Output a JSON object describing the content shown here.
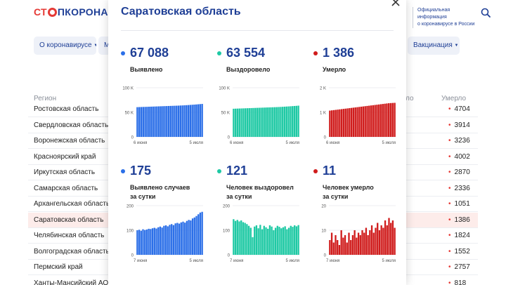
{
  "header": {
    "logo_part1": "СТ",
    "logo_part2": "ПКОРОНАВИ",
    "official_line1": "Официальная информация",
    "official_line2": "о коронавирусе в России"
  },
  "nav": {
    "about": "О коронавирусе",
    "m": "М",
    "vaccination": "Вакцинация"
  },
  "table": {
    "col_region": "Регион",
    "col_partial": "ло",
    "col_died": "Умерло",
    "rows": [
      {
        "name": "Ростовская область",
        "value": "4704"
      },
      {
        "name": "Свердловская область",
        "value": "3914"
      },
      {
        "name": "Воронежская область",
        "value": "3236"
      },
      {
        "name": "Красноярский край",
        "value": "4002"
      },
      {
        "name": "Иркутская область",
        "value": "2870"
      },
      {
        "name": "Самарская область",
        "value": "2336"
      },
      {
        "name": "Архангельская область",
        "value": "1051"
      },
      {
        "name": "Саратовская область",
        "value": "1386"
      },
      {
        "name": "Челябинская область",
        "value": "1824"
      },
      {
        "name": "Волгоградская область",
        "value": "1552"
      },
      {
        "name": "Пермский край",
        "value": "2757"
      },
      {
        "name": "Ханты-Мансийский АО",
        "value": "818"
      }
    ]
  },
  "modal": {
    "title": "Саратовская область",
    "stats": [
      {
        "value": "67 088",
        "label": "Выявлено",
        "color": "#2b6fe8"
      },
      {
        "value": "63 554",
        "label": "Выздоровело",
        "color": "#1ec9a4"
      },
      {
        "value": "1 386",
        "label": "Умерло",
        "color": "#d01c1c"
      },
      {
        "value": "175",
        "label1": "Выявлено случаев",
        "label2": "за сутки",
        "color": "#2b6fe8"
      },
      {
        "value": "121",
        "label1": "Человек выздоровел",
        "label2": "за сутки",
        "color": "#1ec9a4"
      },
      {
        "value": "11",
        "label1": "Человек умерло",
        "label2": "за сутки",
        "color": "#d01c1c"
      }
    ]
  },
  "chart_data": [
    {
      "type": "bar",
      "ticks_y": [
        "100 K",
        "50 K",
        "0"
      ],
      "ylim": [
        0,
        100000
      ],
      "x_start": "6 июня",
      "x_end": "5 июля",
      "color": "#2b6fe8",
      "values": [
        60500,
        60650,
        60800,
        60950,
        61100,
        61250,
        61400,
        61550,
        61700,
        61850,
        62000,
        62150,
        62300,
        62450,
        62600,
        62750,
        62900,
        63050,
        63200,
        63350,
        63500,
        63650,
        63850,
        64050,
        64300,
        64550,
        64800,
        65100,
        65400,
        65700,
        66000,
        66350,
        66700,
        67088
      ]
    },
    {
      "type": "bar",
      "ticks_y": [
        "100 K",
        "50 K",
        "0"
      ],
      "ylim": [
        0,
        100000
      ],
      "x_start": "6 июня",
      "x_end": "5 июля",
      "color": "#1ec9a4",
      "values": [
        57300,
        57450,
        57600,
        57750,
        57900,
        58050,
        58200,
        58350,
        58500,
        58650,
        58800,
        58950,
        59100,
        59250,
        59400,
        59550,
        59700,
        59850,
        60000,
        60150,
        60300,
        60450,
        60600,
        60800,
        61000,
        61250,
        61500,
        61750,
        62000,
        62300,
        62600,
        62900,
        63200,
        63554
      ]
    },
    {
      "type": "bar",
      "ticks_y": [
        "2 K",
        "1 K",
        "0"
      ],
      "ylim": [
        0,
        2000
      ],
      "x_start": "6 июня",
      "x_end": "5 июля",
      "color": "#d01c1c",
      "values": [
        1070,
        1080,
        1090,
        1100,
        1110,
        1120,
        1130,
        1140,
        1150,
        1160,
        1170,
        1180,
        1190,
        1200,
        1210,
        1220,
        1230,
        1240,
        1250,
        1260,
        1270,
        1280,
        1290,
        1300,
        1310,
        1320,
        1330,
        1340,
        1350,
        1360,
        1370,
        1376,
        1381,
        1386
      ]
    },
    {
      "type": "bar",
      "ticks_y": [
        "200",
        "100",
        "0"
      ],
      "ylim": [
        0,
        200
      ],
      "x_start": "7 июня",
      "x_end": "5 июля",
      "color": "#2b6fe8",
      "values": [
        100,
        102,
        98,
        104,
        101,
        103,
        106,
        105,
        108,
        110,
        107,
        112,
        115,
        111,
        118,
        120,
        116,
        122,
        125,
        121,
        128,
        130,
        127,
        132,
        135,
        131,
        138,
        142,
        140,
        148,
        152,
        158,
        165,
        172,
        175
      ]
    },
    {
      "type": "bar",
      "ticks_y": [
        "200",
        "100",
        "0"
      ],
      "ylim": [
        0,
        200
      ],
      "x_start": "7 июня",
      "x_end": "5 июля",
      "color": "#1ec9a4",
      "values": [
        145,
        138,
        142,
        136,
        140,
        133,
        130,
        125,
        118,
        110,
        72,
        115,
        120,
        108,
        122,
        104,
        118,
        112,
        106,
        120,
        115,
        100,
        110,
        118,
        114,
        108,
        112,
        116,
        104,
        110,
        118,
        114,
        120,
        116,
        121
      ]
    },
    {
      "type": "bar",
      "ticks_y": [
        "20",
        "10",
        "0"
      ],
      "ylim": [
        0,
        20
      ],
      "x_start": "7 июня",
      "x_end": "5 июля",
      "color": "#d01c1c",
      "values": [
        6,
        9,
        5,
        8,
        6,
        4,
        10,
        7,
        8,
        5,
        9,
        6,
        8,
        10,
        7,
        9,
        8,
        10,
        9,
        11,
        8,
        10,
        12,
        9,
        11,
        13,
        10,
        12,
        11,
        14,
        12,
        15,
        13,
        14,
        11
      ]
    }
  ]
}
